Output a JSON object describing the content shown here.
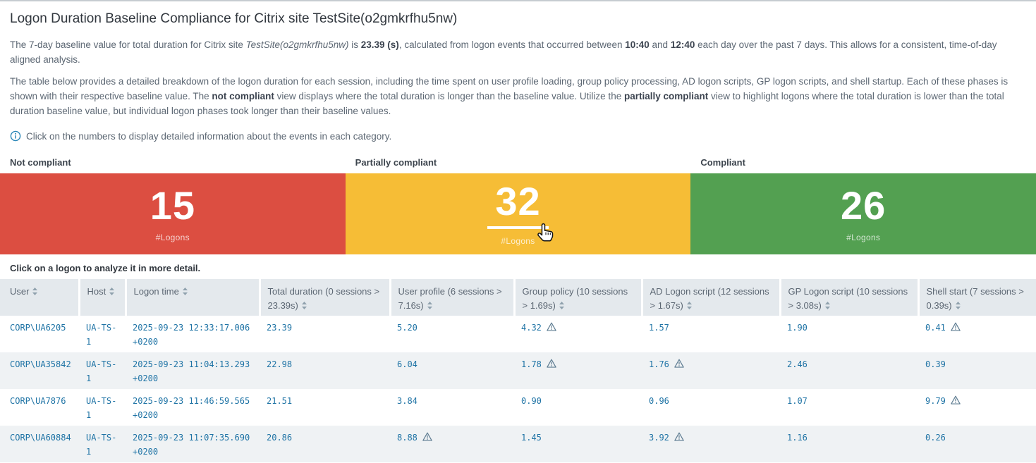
{
  "header": {
    "title": "Logon Duration Baseline Compliance for Citrix site TestSite(o2gmkrfhu5nw)"
  },
  "intro": {
    "p1": [
      {
        "t": "The 7-day baseline value for total duration for Citrix site "
      },
      {
        "t": "TestSite(o2gmkrfhu5nw)",
        "s": "italic"
      },
      {
        "t": " is "
      },
      {
        "t": "23.39 (s)",
        "s": "bold"
      },
      {
        "t": ", calculated from logon events that occurred between "
      },
      {
        "t": "10:40",
        "s": "bold"
      },
      {
        "t": " and "
      },
      {
        "t": "12:40",
        "s": "bold"
      },
      {
        "t": " each day over the past 7 days. This allows for a consistent, time-of-day aligned analysis."
      }
    ],
    "p2": [
      {
        "t": "The table below provides a detailed breakdown of the logon duration for each session, including the time spent on user profile loading, group policy processing, AD logon scripts, GP logon scripts, and shell startup. Each of these phases is shown with their respective baseline value. The "
      },
      {
        "t": "not compliant",
        "s": "bold"
      },
      {
        "t": " view displays where the total duration is longer than the baseline value. Utilize the "
      },
      {
        "t": "partially compliant",
        "s": "bold"
      },
      {
        "t": " view to highlight logons where the total duration is lower than the total duration baseline value, but individual logon phases took longer than their baseline values."
      }
    ],
    "info_note": "Click on the numbers to display detailed information about the events in each category."
  },
  "icons": {
    "info": "info-icon",
    "sort": "sort-icon",
    "warning": "warning-icon",
    "cursor": "hand-cursor-icon"
  },
  "panels": [
    {
      "key": "not-compliant",
      "label": "Not compliant",
      "value": "15",
      "metric": "#Logons",
      "color": "#dc4e41",
      "hovered": false
    },
    {
      "key": "partially-compliant",
      "label": "Partially compliant",
      "value": "32",
      "metric": "#Logons",
      "color": "#f6bd36",
      "hovered": true
    },
    {
      "key": "compliant",
      "label": "Compliant",
      "value": "26",
      "metric": "#Logons",
      "color": "#53a051",
      "hovered": false
    }
  ],
  "table": {
    "caption": "Click on a logon to analyze it in more detail.",
    "link_color": "#1e73a5",
    "columns": [
      {
        "key": "user",
        "label": "User",
        "sortable": true
      },
      {
        "key": "host",
        "label": "Host",
        "sortable": true
      },
      {
        "key": "logon-time",
        "label": "Logon time",
        "sortable": true
      },
      {
        "key": "total-duration",
        "label": "Total duration (0 sessions > 23.39s)",
        "sortable": true
      },
      {
        "key": "user-profile",
        "label": "User profile (6 sessions > 7.16s)",
        "sortable": true
      },
      {
        "key": "group-policy",
        "label": "Group policy (10 sessions > 1.69s)",
        "sortable": true
      },
      {
        "key": "ad-logon-script",
        "label": "AD Logon script (12 sessions > 1.67s)",
        "sortable": true
      },
      {
        "key": "gp-logon-script",
        "label": "GP Logon script (10 sessions > 3.08s)",
        "sortable": true
      },
      {
        "key": "shell-start",
        "label": "Shell start (7 sessions > 0.39s)",
        "sortable": true
      }
    ],
    "rows": [
      {
        "user": "CORP\\UA6205",
        "host": "UA-TS-1",
        "logon_time": "2025-09-23 12:33:17.006 +0200",
        "metrics": [
          {
            "v": "23.39",
            "warn": false
          },
          {
            "v": "5.20",
            "warn": false
          },
          {
            "v": "4.32",
            "warn": true
          },
          {
            "v": "1.57",
            "warn": false
          },
          {
            "v": "1.90",
            "warn": false
          },
          {
            "v": "0.41",
            "warn": true
          }
        ]
      },
      {
        "user": "CORP\\UA35842",
        "host": "UA-TS-1",
        "logon_time": "2025-09-23 11:04:13.293 +0200",
        "metrics": [
          {
            "v": "22.98",
            "warn": false
          },
          {
            "v": "6.04",
            "warn": false
          },
          {
            "v": "1.78",
            "warn": true
          },
          {
            "v": "1.76",
            "warn": true
          },
          {
            "v": "2.46",
            "warn": false
          },
          {
            "v": "0.39",
            "warn": false
          }
        ]
      },
      {
        "user": "CORP\\UA7876",
        "host": "UA-TS-1",
        "logon_time": "2025-09-23 11:46:59.565 +0200",
        "metrics": [
          {
            "v": "21.51",
            "warn": false
          },
          {
            "v": "3.84",
            "warn": false
          },
          {
            "v": "0.90",
            "warn": false
          },
          {
            "v": "0.96",
            "warn": false
          },
          {
            "v": "1.07",
            "warn": false
          },
          {
            "v": "9.79",
            "warn": true
          }
        ]
      },
      {
        "user": "CORP\\UA60884",
        "host": "UA-TS-1",
        "logon_time": "2025-09-23 11:07:35.690 +0200",
        "metrics": [
          {
            "v": "20.86",
            "warn": false
          },
          {
            "v": "8.88",
            "warn": true
          },
          {
            "v": "1.45",
            "warn": false
          },
          {
            "v": "3.92",
            "warn": true
          },
          {
            "v": "1.16",
            "warn": false
          },
          {
            "v": "0.26",
            "warn": false
          }
        ]
      }
    ]
  }
}
